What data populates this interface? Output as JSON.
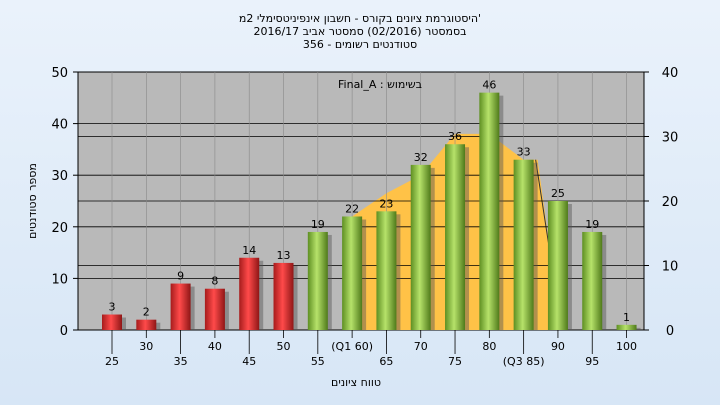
{
  "chart_data": {
    "type": "bar",
    "title_lines": [
      "היסטוגרמת ציונים בקורס - חשבון אינפיניטסימלי 2מ'",
      "בסמסטר  (02/2016)  סמסטר אביב 2016/17",
      "סטודנטים רשומים - 356"
    ],
    "legend_text": "Final_A : בשימוש",
    "legend_position": "top-center",
    "xlabel": "טווח ציונים",
    "ylabel": "מספר סטודנטים",
    "ylim": [
      0,
      50
    ],
    "y_ticks": [
      0,
      10,
      20,
      30,
      40,
      50
    ],
    "y2lim": [
      0,
      40
    ],
    "y2_ticks": [
      0,
      10,
      20,
      30,
      40
    ],
    "grid": true,
    "categories": [
      "25",
      "30",
      "35",
      "40",
      "45",
      "50",
      "55",
      "(Q1 60)",
      "65",
      "70",
      "75",
      "80",
      "(Q3 85)",
      "90",
      "95",
      "100"
    ],
    "values": [
      3,
      2,
      9,
      8,
      14,
      13,
      19,
      22,
      23,
      32,
      36,
      46,
      33,
      25,
      19,
      1
    ],
    "bar_colors": [
      "red",
      "red",
      "red",
      "red",
      "red",
      "red",
      "green",
      "green",
      "green",
      "green",
      "green",
      "green",
      "green",
      "green",
      "green",
      "green"
    ],
    "colors": {
      "red": "#d92b2b",
      "green": "#8cc63f",
      "band": "#ffc247",
      "plot_bg": "#b9b9b9"
    },
    "quartile_band": {
      "from_category": "(Q1 60)",
      "to_category": "(Q3 85)",
      "envelope_values": [
        22,
        26.5,
        30,
        38,
        38,
        33
      ]
    }
  }
}
